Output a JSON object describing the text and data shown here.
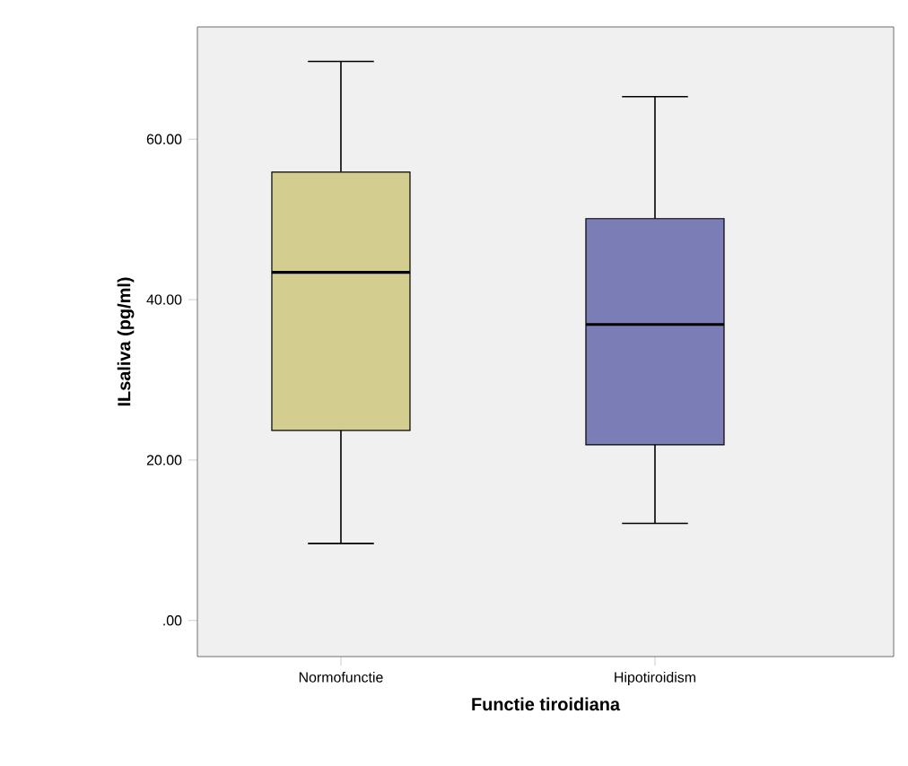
{
  "chart_data": {
    "type": "box",
    "xlabel": "Functie tiroidiana",
    "ylabel": "ILsaliva (pg/ml)",
    "categories": [
      "Normofunctie",
      "Hipotiroidism"
    ],
    "boxes": [
      {
        "low": 9.6,
        "q1": 23.7,
        "median": 43.4,
        "q3": 55.9,
        "high": 69.7
      },
      {
        "low": 12.1,
        "q1": 21.9,
        "median": 36.9,
        "q3": 50.1,
        "high": 65.3
      }
    ],
    "colors": [
      "#d3cd8f",
      "#7b7db6"
    ],
    "ylim": [
      -4.5,
      74
    ],
    "yticks": [
      {
        "value": 0,
        "label": ".00"
      },
      {
        "value": 20,
        "label": "20.00"
      },
      {
        "value": 40,
        "label": "40.00"
      },
      {
        "value": 60,
        "label": "60.00"
      }
    ]
  }
}
